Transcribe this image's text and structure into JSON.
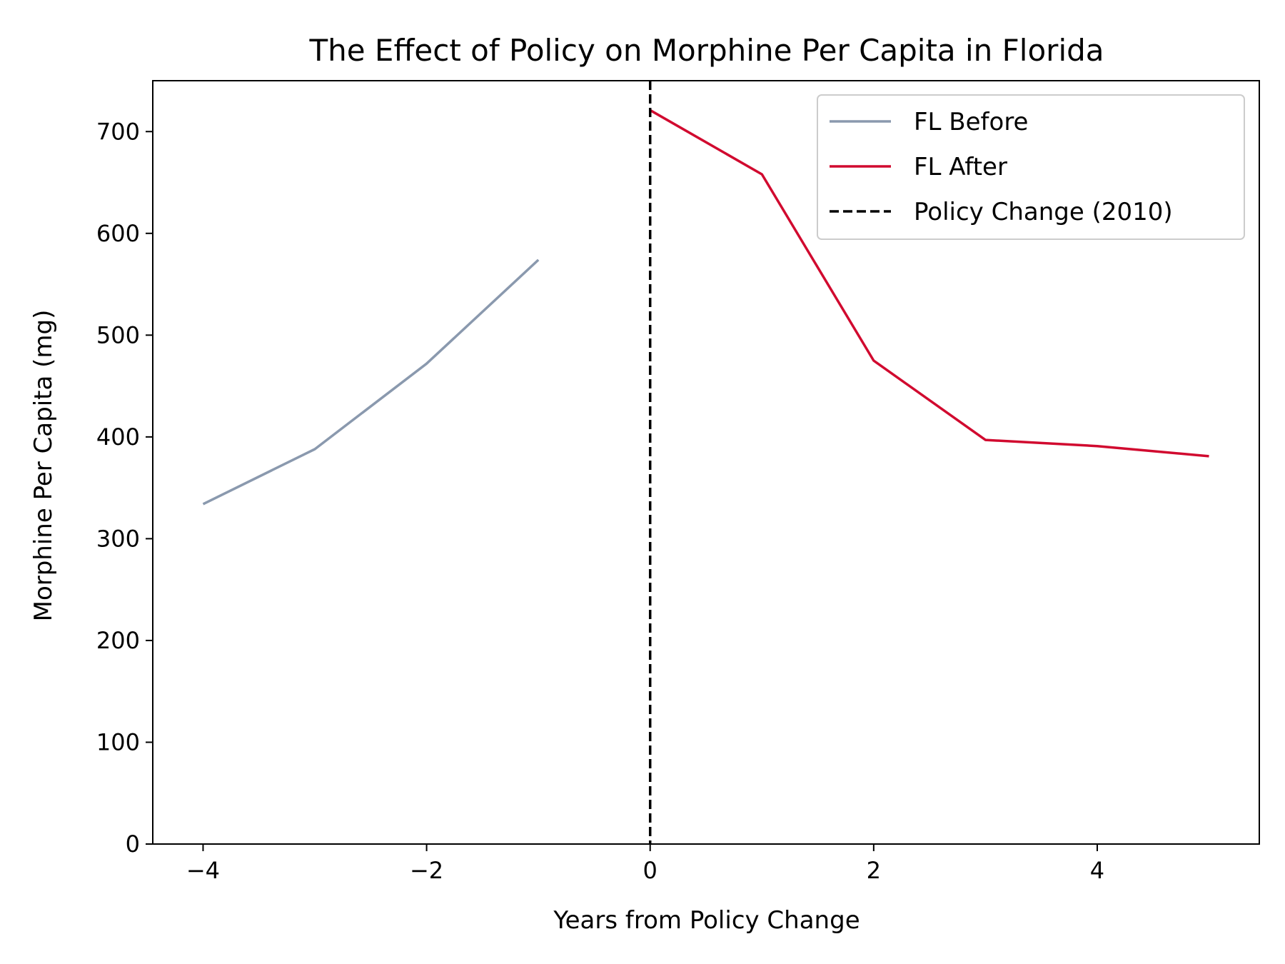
{
  "chart_data": {
    "type": "line",
    "title": "The Effect of Policy on Morphine Per Capita in Florida",
    "xlabel": "Years from Policy Change",
    "ylabel": "Morphine Per Capita (mg)",
    "xlim": [
      -4.45,
      5.45
    ],
    "ylim": [
      0,
      750
    ],
    "xticks": [
      -4,
      -2,
      0,
      2,
      4
    ],
    "xtick_labels": [
      "−4",
      "−2",
      "0",
      "2",
      "4"
    ],
    "yticks": [
      0,
      100,
      200,
      300,
      400,
      500,
      600,
      700
    ],
    "ytick_labels": [
      "0",
      "100",
      "200",
      "300",
      "400",
      "500",
      "600",
      "700"
    ],
    "grid": false,
    "legend_position": "top-right",
    "series": [
      {
        "name": "FL Before",
        "color": "#8a99ae",
        "style": "solid",
        "x": [
          -4,
          -3,
          -2,
          -1
        ],
        "y": [
          334,
          388,
          472,
          574
        ]
      },
      {
        "name": "FL After",
        "color": "#d10a2f",
        "style": "solid",
        "x": [
          0,
          1,
          2,
          3,
          4,
          5
        ],
        "y": [
          721,
          658,
          475,
          397,
          391,
          381
        ]
      }
    ],
    "vlines": [
      {
        "name": "Policy Change (2010)",
        "x": 0,
        "color": "#000000",
        "style": "dashed"
      }
    ]
  }
}
